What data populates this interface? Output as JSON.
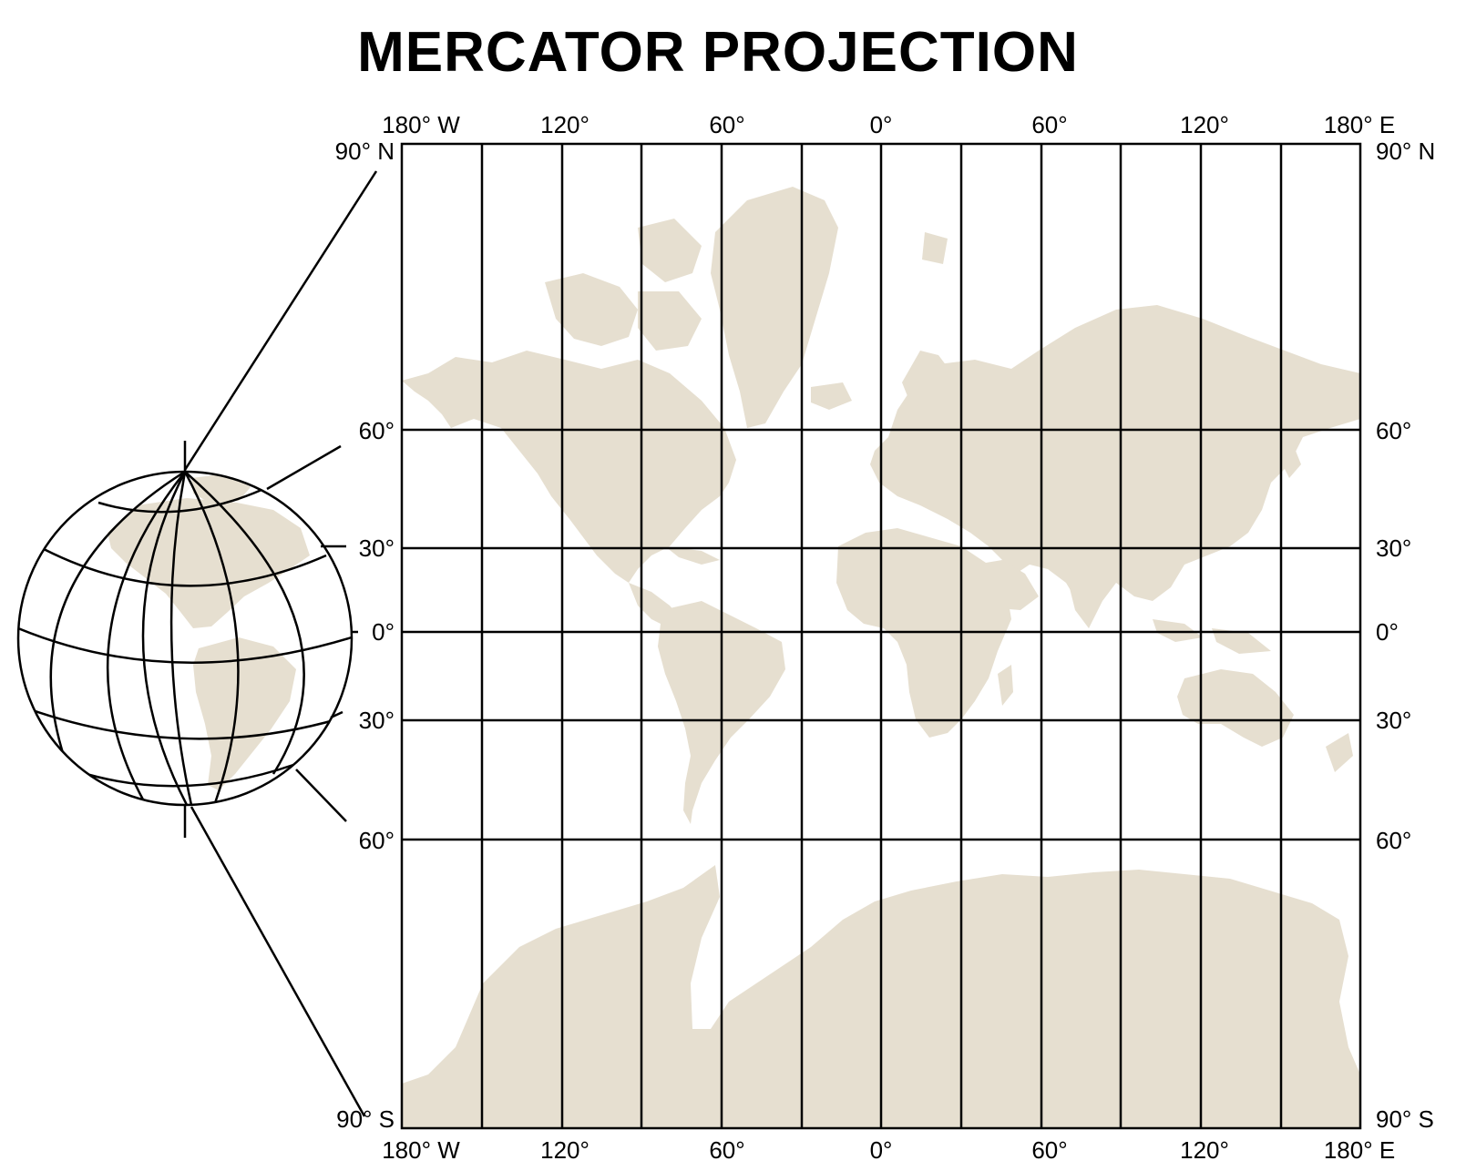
{
  "title": "MERCATOR PROJECTION",
  "colors": {
    "land": "#e6dfd0",
    "ink": "#000000",
    "background": "#ffffff"
  },
  "map": {
    "longitude_labels": [
      "180° W",
      "120°",
      "60°",
      "0°",
      "60°",
      "120°",
      "180° E"
    ],
    "latitude_labels_left": [
      "90° N",
      "60°",
      "30°",
      "0°",
      "30°",
      "60°",
      "90° S"
    ],
    "latitude_labels_right": [
      "90° N",
      "60°",
      "30°",
      "0°",
      "30°",
      "60°",
      "90° S"
    ]
  }
}
